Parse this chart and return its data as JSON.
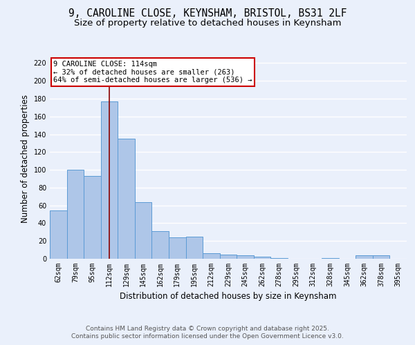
{
  "title_line1": "9, CAROLINE CLOSE, KEYNSHAM, BRISTOL, BS31 2LF",
  "title_line2": "Size of property relative to detached houses in Keynsham",
  "xlabel": "Distribution of detached houses by size in Keynsham",
  "ylabel": "Number of detached properties",
  "categories": [
    "62sqm",
    "79sqm",
    "95sqm",
    "112sqm",
    "129sqm",
    "145sqm",
    "162sqm",
    "179sqm",
    "195sqm",
    "212sqm",
    "229sqm",
    "245sqm",
    "262sqm",
    "278sqm",
    "295sqm",
    "312sqm",
    "328sqm",
    "345sqm",
    "362sqm",
    "378sqm",
    "395sqm"
  ],
  "values": [
    54,
    100,
    93,
    177,
    135,
    64,
    31,
    24,
    25,
    6,
    5,
    4,
    2,
    1,
    0,
    0,
    1,
    0,
    4,
    4,
    0
  ],
  "bar_color": "#aec6e8",
  "bar_edge_color": "#5b9bd5",
  "background_color": "#eaf0fb",
  "grid_color": "#ffffff",
  "vline_x_index": 3,
  "vline_color": "#8b0000",
  "annotation_text": "9 CAROLINE CLOSE: 114sqm\n← 32% of detached houses are smaller (263)\n64% of semi-detached houses are larger (536) →",
  "annotation_box_color": "#ffffff",
  "annotation_box_edge_color": "#cc0000",
  "ylim": [
    0,
    225
  ],
  "yticks": [
    0,
    20,
    40,
    60,
    80,
    100,
    120,
    140,
    160,
    180,
    200,
    220
  ],
  "footnote_line1": "Contains HM Land Registry data © Crown copyright and database right 2025.",
  "footnote_line2": "Contains public sector information licensed under the Open Government Licence v3.0.",
  "title_fontsize": 10.5,
  "subtitle_fontsize": 9.5,
  "axis_label_fontsize": 8.5,
  "tick_fontsize": 7,
  "annotation_fontsize": 7.5,
  "footnote_fontsize": 6.5
}
